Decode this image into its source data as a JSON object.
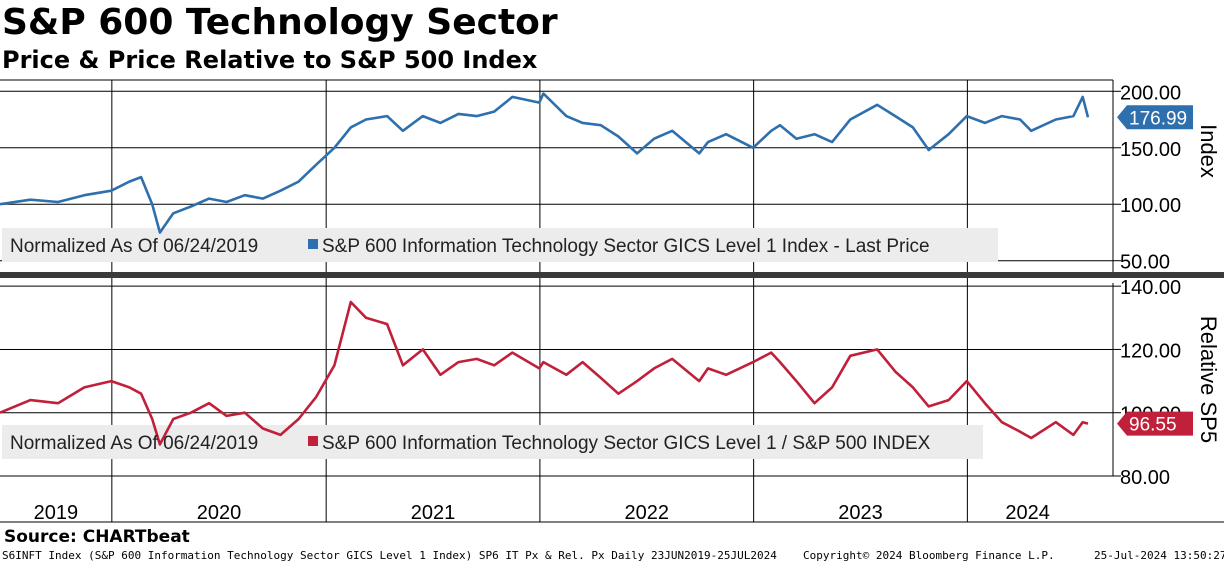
{
  "header": {
    "title": "S&P 600 Technology Sector",
    "subtitle": "Price & Price Relative to S&P 500 Index"
  },
  "colors": {
    "blue": "#2e6fad",
    "red": "#c0203a",
    "grid": "#000000",
    "legend_bg": "#ececec"
  },
  "chart_data": [
    {
      "type": "line",
      "panel": "top",
      "ylabel": "Index",
      "ylim": [
        40,
        210
      ],
      "yticks": [
        50,
        100,
        150,
        200
      ],
      "ytick_labels": [
        "50.00",
        "100.00",
        "150.00",
        "200.00"
      ],
      "grid": true,
      "legend_prefix": "Normalized As Of 06/24/2019",
      "series": [
        {
          "name": "S&P 600 Information Technology Sector GICS Level 1 Index - Last Price",
          "last_value": 176.99,
          "last_label": "176.99",
          "points": [
            [
              "2019-06-24",
              100
            ],
            [
              "2019-08-15",
              104
            ],
            [
              "2019-10-01",
              102
            ],
            [
              "2019-11-15",
              108
            ],
            [
              "2019-12-31",
              112
            ],
            [
              "2020-01-31",
              120
            ],
            [
              "2020-02-20",
              124
            ],
            [
              "2020-03-10",
              100
            ],
            [
              "2020-03-23",
              75
            ],
            [
              "2020-04-15",
              92
            ],
            [
              "2020-05-15",
              98
            ],
            [
              "2020-06-15",
              105
            ],
            [
              "2020-07-15",
              102
            ],
            [
              "2020-08-15",
              108
            ],
            [
              "2020-09-15",
              105
            ],
            [
              "2020-10-15",
              112
            ],
            [
              "2020-11-15",
              120
            ],
            [
              "2020-12-15",
              135
            ],
            [
              "2021-01-15",
              150
            ],
            [
              "2021-02-12",
              168
            ],
            [
              "2021-03-10",
              175
            ],
            [
              "2021-04-15",
              178
            ],
            [
              "2021-05-12",
              165
            ],
            [
              "2021-06-15",
              178
            ],
            [
              "2021-07-15",
              172
            ],
            [
              "2021-08-15",
              180
            ],
            [
              "2021-09-15",
              178
            ],
            [
              "2021-10-15",
              182
            ],
            [
              "2021-11-15",
              195
            ],
            [
              "2021-12-31",
              190
            ],
            [
              "2022-01-07",
              198
            ],
            [
              "2022-02-15",
              178
            ],
            [
              "2022-03-15",
              172
            ],
            [
              "2022-04-15",
              170
            ],
            [
              "2022-05-15",
              160
            ],
            [
              "2022-06-16",
              145
            ],
            [
              "2022-07-15",
              158
            ],
            [
              "2022-08-15",
              165
            ],
            [
              "2022-09-30",
              145
            ],
            [
              "2022-10-15",
              155
            ],
            [
              "2022-11-15",
              162
            ],
            [
              "2022-12-31",
              150
            ],
            [
              "2023-01-31",
              165
            ],
            [
              "2023-02-15",
              170
            ],
            [
              "2023-03-15",
              158
            ],
            [
              "2023-04-15",
              162
            ],
            [
              "2023-05-15",
              155
            ],
            [
              "2023-06-15",
              175
            ],
            [
              "2023-07-31",
              188
            ],
            [
              "2023-08-31",
              178
            ],
            [
              "2023-09-30",
              168
            ],
            [
              "2023-10-27",
              148
            ],
            [
              "2023-11-30",
              162
            ],
            [
              "2023-12-31",
              178
            ],
            [
              "2024-01-31",
              172
            ],
            [
              "2024-02-29",
              178
            ],
            [
              "2024-03-31",
              175
            ],
            [
              "2024-04-19",
              165
            ],
            [
              "2024-05-31",
              175
            ],
            [
              "2024-06-30",
              178
            ],
            [
              "2024-07-16",
              195
            ],
            [
              "2024-07-25",
              176.99
            ]
          ]
        }
      ]
    },
    {
      "type": "line",
      "panel": "bottom",
      "ylabel": "Relative SP5",
      "ylim": [
        80,
        141
      ],
      "yticks": [
        80,
        100,
        120,
        140
      ],
      "ytick_labels": [
        "80.00",
        "100.00",
        "120.00",
        "140.00"
      ],
      "grid": true,
      "legend_prefix": "Normalized As Of 06/24/2019",
      "series": [
        {
          "name": "S&P 600 Information Technology Sector GICS Level 1 / S&P 500 INDEX",
          "last_value": 96.55,
          "last_label": "96.55",
          "points": [
            [
              "2019-06-24",
              100
            ],
            [
              "2019-08-15",
              104
            ],
            [
              "2019-10-01",
              103
            ],
            [
              "2019-11-15",
              108
            ],
            [
              "2019-12-31",
              110
            ],
            [
              "2020-01-31",
              108
            ],
            [
              "2020-02-20",
              106
            ],
            [
              "2020-03-10",
              98
            ],
            [
              "2020-03-23",
              90
            ],
            [
              "2020-04-15",
              98
            ],
            [
              "2020-05-15",
              100
            ],
            [
              "2020-06-15",
              103
            ],
            [
              "2020-07-15",
              99
            ],
            [
              "2020-08-15",
              100
            ],
            [
              "2020-09-15",
              95
            ],
            [
              "2020-10-15",
              93
            ],
            [
              "2020-11-15",
              98
            ],
            [
              "2020-12-15",
              105
            ],
            [
              "2021-01-15",
              115
            ],
            [
              "2021-02-12",
              135
            ],
            [
              "2021-03-10",
              130
            ],
            [
              "2021-04-15",
              128
            ],
            [
              "2021-05-12",
              115
            ],
            [
              "2021-06-15",
              120
            ],
            [
              "2021-07-15",
              112
            ],
            [
              "2021-08-15",
              116
            ],
            [
              "2021-09-15",
              117
            ],
            [
              "2021-10-15",
              115
            ],
            [
              "2021-11-15",
              119
            ],
            [
              "2021-12-31",
              114
            ],
            [
              "2022-01-07",
              116
            ],
            [
              "2022-02-15",
              112
            ],
            [
              "2022-03-15",
              116
            ],
            [
              "2022-04-15",
              111
            ],
            [
              "2022-05-15",
              106
            ],
            [
              "2022-06-16",
              110
            ],
            [
              "2022-07-15",
              114
            ],
            [
              "2022-08-15",
              117
            ],
            [
              "2022-09-30",
              110
            ],
            [
              "2022-10-15",
              114
            ],
            [
              "2022-11-15",
              112
            ],
            [
              "2022-12-31",
              116
            ],
            [
              "2023-01-31",
              119
            ],
            [
              "2023-02-15",
              116
            ],
            [
              "2023-03-15",
              110
            ],
            [
              "2023-04-15",
              103
            ],
            [
              "2023-05-15",
              108
            ],
            [
              "2023-06-15",
              118
            ],
            [
              "2023-07-31",
              120
            ],
            [
              "2023-08-31",
              113
            ],
            [
              "2023-09-30",
              108
            ],
            [
              "2023-10-27",
              102
            ],
            [
              "2023-11-30",
              104
            ],
            [
              "2023-12-31",
              110
            ],
            [
              "2024-01-31",
              103
            ],
            [
              "2024-02-29",
              97
            ],
            [
              "2024-03-31",
              94
            ],
            [
              "2024-04-19",
              92
            ],
            [
              "2024-05-31",
              97
            ],
            [
              "2024-06-30",
              93
            ],
            [
              "2024-07-16",
              97
            ],
            [
              "2024-07-25",
              96.55
            ]
          ]
        }
      ]
    }
  ],
  "x_axis": {
    "years": [
      "2019",
      "2020",
      "2021",
      "2022",
      "2023",
      "2024"
    ],
    "start": "2019-06-24",
    "end": "2024-07-25"
  },
  "footer": {
    "source": "Source: CHARTbeat",
    "description": "S6INFT Index (S&P 600 Information Technology Sector GICS Level 1 Index) SP6 IT Px & Rel. Px  Daily 23JUN2019-25JUL2024",
    "copyright": "Copyright© 2024 Bloomberg Finance L.P.",
    "timestamp": "25-Jul-2024 13:50:27"
  }
}
